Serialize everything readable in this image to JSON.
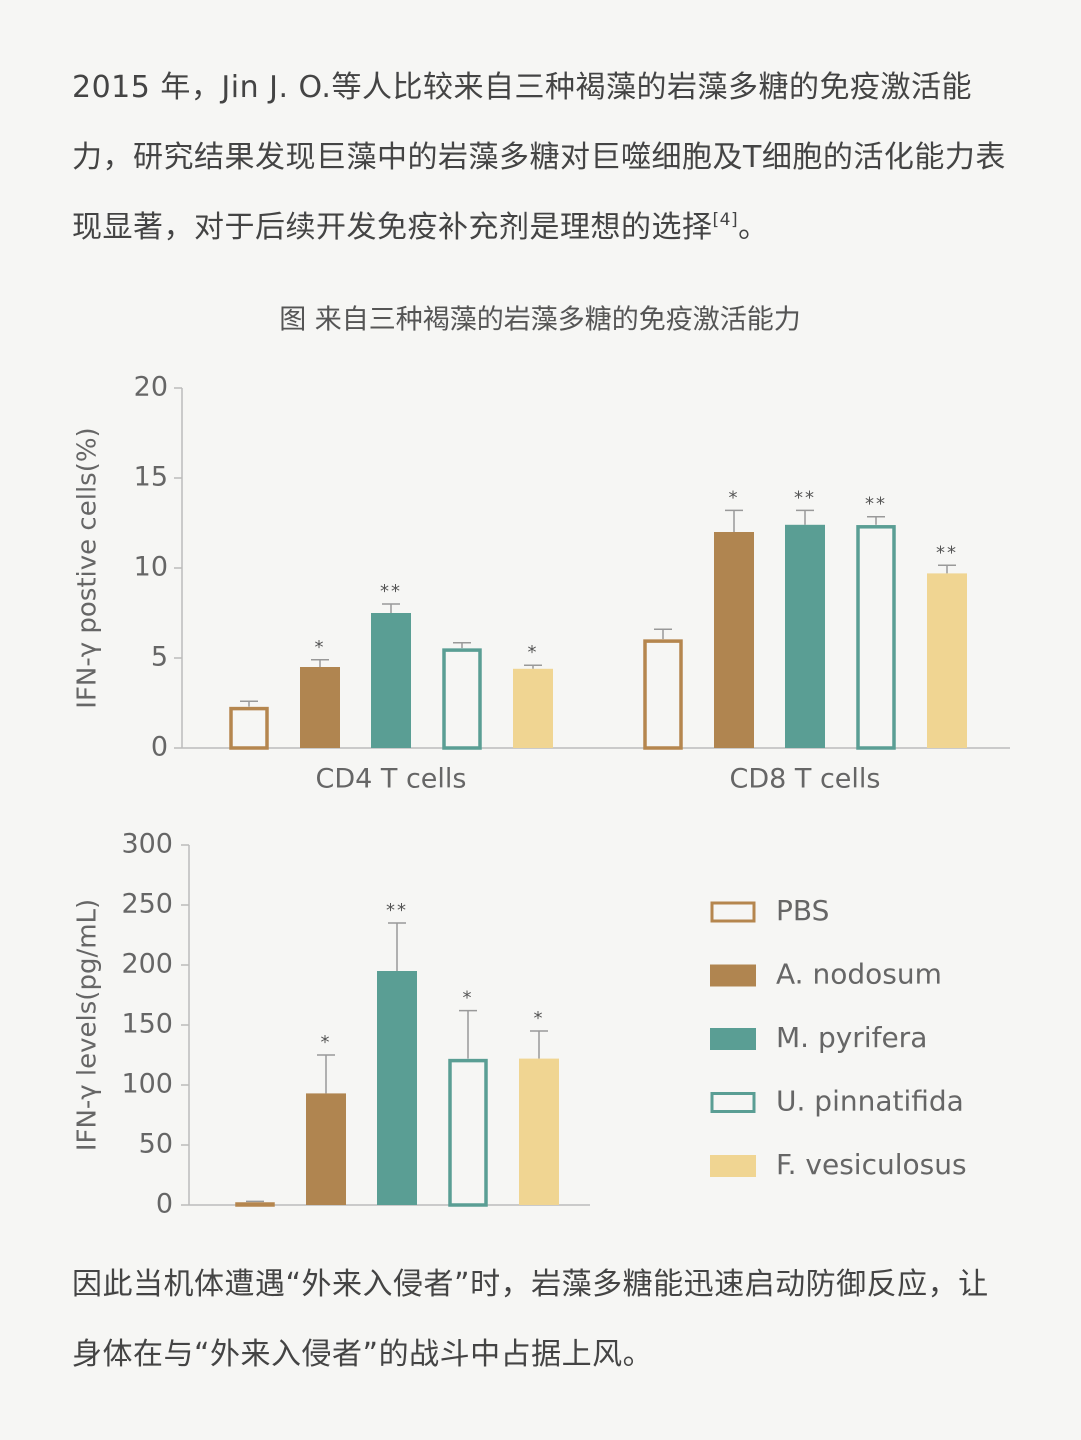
{
  "paragraphs": [
    {
      "text": "2015 年，Jin J. O.等人比较来自三种褐藻的岩藻多糖的免疫激活能力，研究结果发现巨藻中的岩藻多糖对巨噬细胞及T细胞的活化能力表现显著，对于后续开发免疫补充剂是理想的选择",
      "ref": "[4]",
      "tail": "。"
    },
    {
      "text": "因此当机体遭遇“外来入侵者”时，岩藻多糖能迅速启动防御反应，让身体在与“外来入侵者”的战斗中占据上风。"
    }
  ],
  "caption": "图 来自三种褐藻的岩藻多糖的免疫激活能力",
  "chart_data": [
    {
      "type": "bar",
      "y_label": "IFN-γ postive cells(%)",
      "categories": [
        "CD4 T cells",
        "CD8 T cells"
      ],
      "ylim": [
        0,
        20
      ],
      "yticks": [
        0,
        5,
        10,
        15,
        20
      ],
      "series": [
        {
          "name": "PBS",
          "color": "#b5864e",
          "style": "outline",
          "values": [
            2.3,
            6.05
          ],
          "errors": [
            0.3,
            0.55
          ],
          "annotations": [
            null,
            null
          ]
        },
        {
          "name": "A. nodosum",
          "color": "#b08550",
          "style": "fill",
          "values": [
            4.5,
            12
          ],
          "errors": [
            0.4,
            1.2
          ],
          "annotations": [
            "*",
            "*"
          ]
        },
        {
          "name": "M. pyrifera",
          "color": "#5a9e94",
          "style": "fill",
          "values": [
            7.5,
            12.4
          ],
          "errors": [
            0.5,
            0.8
          ],
          "annotations": [
            "**",
            "**"
          ]
        },
        {
          "name": "U. pinnatifida",
          "color": "#5a9e94",
          "style": "outline",
          "values": [
            5.55,
            12.4
          ],
          "errors": [
            0.3,
            0.45
          ],
          "annotations": [
            null,
            "**"
          ]
        },
        {
          "name": "F. vesiculosus",
          "color": "#f0d592",
          "style": "fill",
          "values": [
            4.4,
            9.7
          ],
          "errors": [
            0.2,
            0.45
          ],
          "annotations": [
            "*",
            "**"
          ]
        }
      ]
    },
    {
      "type": "bar",
      "y_label": "IFN-γ levels(pg/mL)",
      "categories": [
        null
      ],
      "ylim": [
        0,
        300
      ],
      "yticks": [
        0,
        50,
        100,
        150,
        200,
        250,
        300
      ],
      "legend": "right",
      "series": [
        {
          "name": "PBS",
          "color": "#b5864e",
          "style": "outline",
          "values": [
            2.5
          ],
          "errors": [
            0.5
          ],
          "annotations": [
            null
          ]
        },
        {
          "name": "A. nodosum",
          "color": "#b08550",
          "style": "fill",
          "values": [
            93
          ],
          "errors": [
            32
          ],
          "annotations": [
            "*"
          ]
        },
        {
          "name": "M. pyrifera",
          "color": "#5a9e94",
          "style": "fill",
          "values": [
            195
          ],
          "errors": [
            40
          ],
          "annotations": [
            "**"
          ]
        },
        {
          "name": "U. pinnatifida",
          "color": "#5a9e94",
          "style": "outline",
          "values": [
            122
          ],
          "errors": [
            40
          ],
          "annotations": [
            "*"
          ]
        },
        {
          "name": "F. vesiculosus",
          "color": "#f0d592",
          "style": "fill",
          "values": [
            122
          ],
          "errors": [
            23
          ],
          "annotations": [
            "*"
          ]
        }
      ]
    }
  ]
}
